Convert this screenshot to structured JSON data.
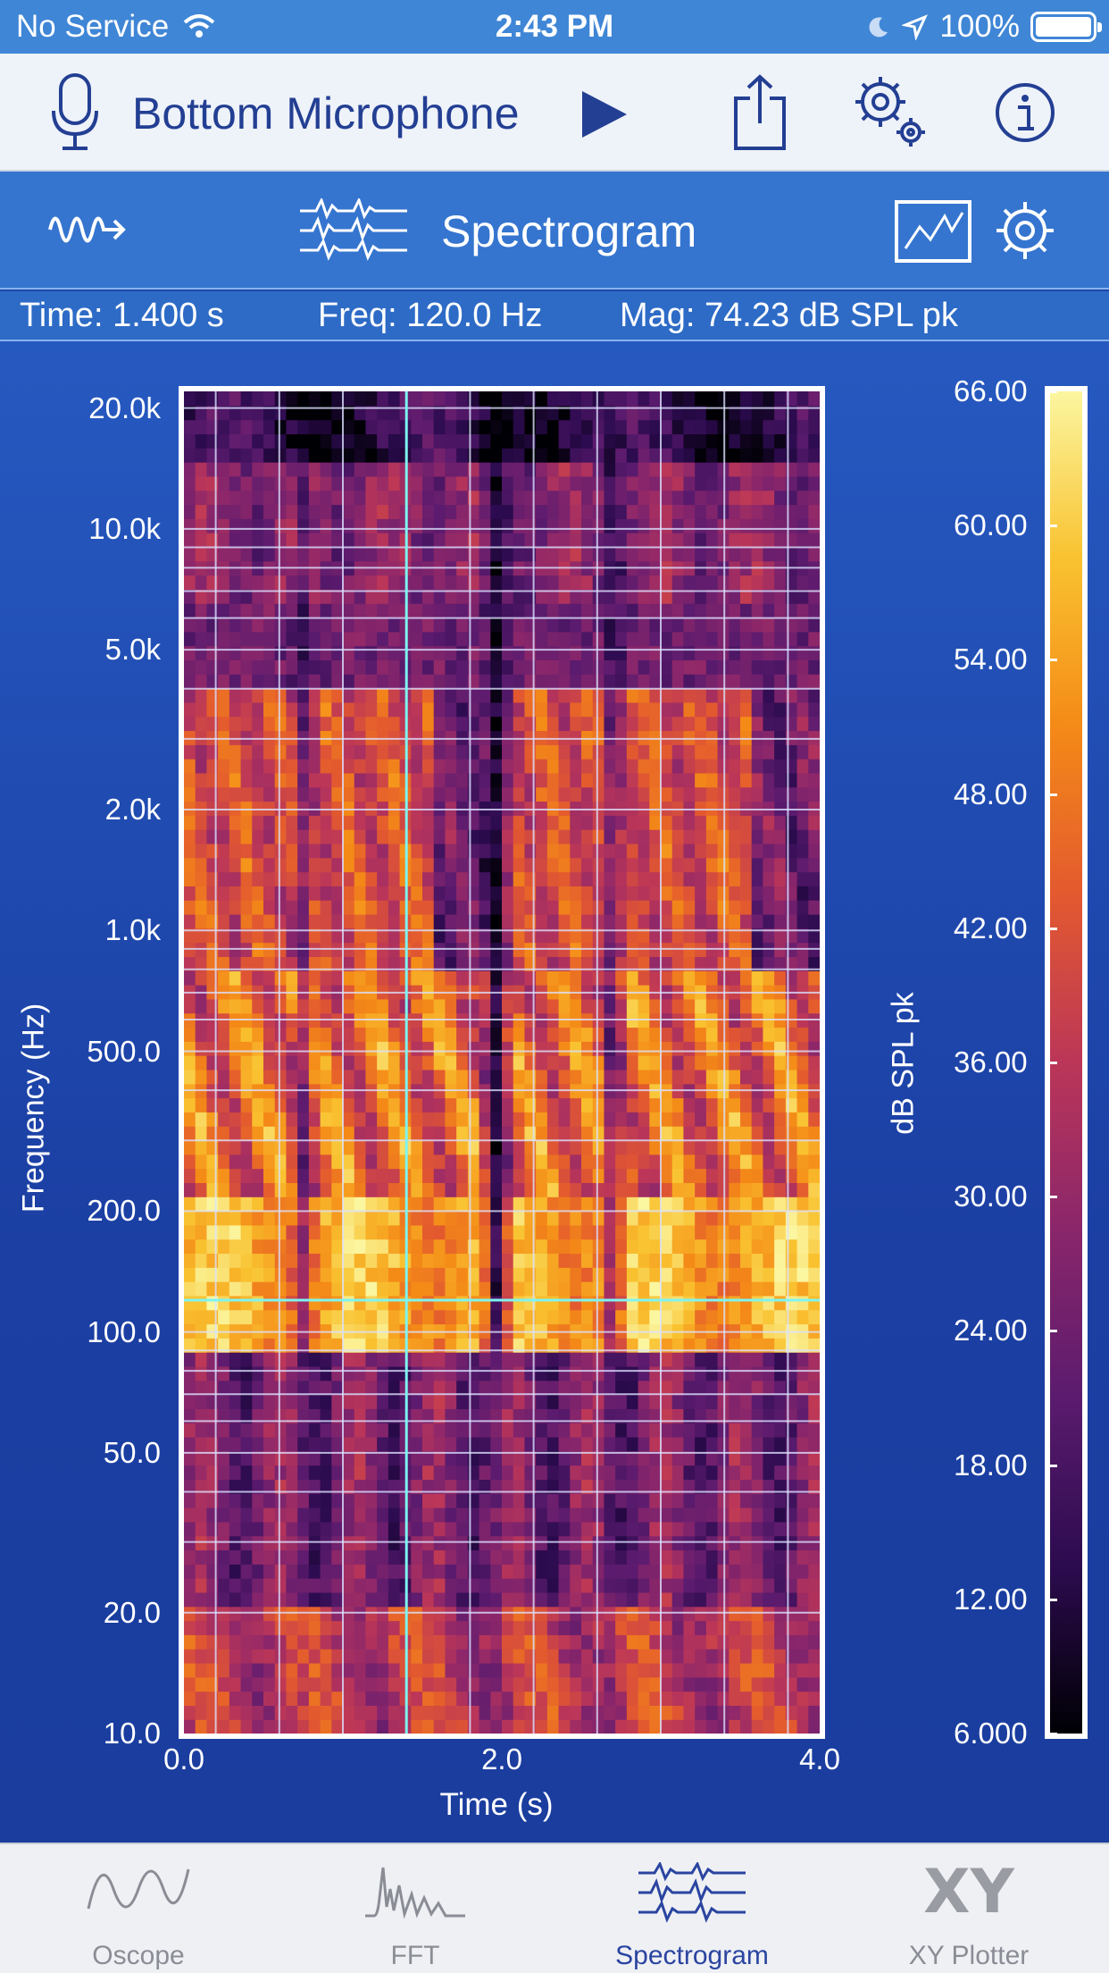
{
  "status_bar": {
    "carrier": "No Service",
    "time": "2:43 PM",
    "battery": "100%"
  },
  "toolbar": {
    "input_source": "Bottom Microphone",
    "icons": [
      "microphone-icon",
      "play-icon",
      "share-icon",
      "settings-icon",
      "info-icon"
    ]
  },
  "mode_bar": {
    "mode_label": "Spectrogram",
    "icons": [
      "waveform-arrow-icon",
      "spectrogram-icon",
      "trace-icon",
      "gear-icon"
    ]
  },
  "readout": {
    "time": "Time: 1.400 s",
    "freq": "Freq: 120.0 Hz",
    "mag": "Mag: 74.23 dB SPL pk"
  },
  "chart_data": {
    "type": "heatmap",
    "xlabel": "Time (s)",
    "ylabel": "Frequency (Hz)",
    "x_ticks": [
      "0.0",
      "2.0",
      "4.0"
    ],
    "xlim": [
      0.0,
      4.0
    ],
    "y_ticks": [
      "20.0k",
      "10.0k",
      "5.0k",
      "2.0k",
      "1.0k",
      "500.0",
      "200.0",
      "100.0",
      "50.0",
      "20.0",
      "10.0"
    ],
    "y_scale": "log",
    "ylim": [
      10,
      22000
    ],
    "colorbar": {
      "label": "dB SPL pk",
      "ticks": [
        "66.00",
        "60.00",
        "54.00",
        "48.00",
        "42.00",
        "36.00",
        "30.00",
        "24.00",
        "18.00",
        "12.00",
        "6.000"
      ],
      "range": [
        6.0,
        66.0
      ],
      "colormap": [
        "#000004",
        "#2c0b4f",
        "#5b1b6e",
        "#8a266b",
        "#bb3658",
        "#e3592f",
        "#f48a17",
        "#f9c230",
        "#fbf6a0"
      ]
    },
    "cursor": {
      "time": 1.4,
      "freq": 120.0
    },
    "grid": true
  },
  "tabs": [
    {
      "label": "Oscope",
      "icon": "oscope-icon"
    },
    {
      "label": "FFT",
      "icon": "fft-icon"
    },
    {
      "label": "Spectrogram",
      "icon": "spectrogram-icon",
      "active": true
    },
    {
      "label": "XY Plotter",
      "icon": "xy",
      "glyph": "XY"
    }
  ]
}
